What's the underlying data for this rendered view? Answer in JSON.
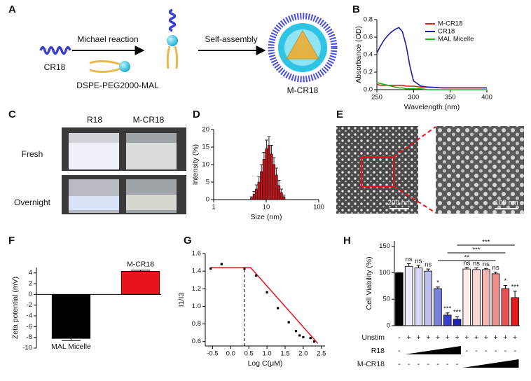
{
  "figure": {
    "panel_labels": [
      "A",
      "B",
      "C",
      "D",
      "E",
      "F",
      "G",
      "H"
    ],
    "scheme": {
      "cr18": "CR18",
      "reaction": "Michael reaction",
      "lipid": "DSPE-PEG2000-MAL",
      "assembly": "Self-assembly",
      "product": "M-CR18"
    },
    "photos": {
      "columns": [
        "R18",
        "M-CR18"
      ],
      "rows": [
        "Fresh",
        "Overnight"
      ]
    },
    "tem": {
      "scale_bars": [
        "200 nm",
        "100 nm"
      ]
    }
  },
  "chart_data": [
    {
      "type": "line",
      "xlabel": "Wavelength (nm)",
      "ylabel": "Absorbance (OD)",
      "x": [
        250,
        255,
        260,
        265,
        270,
        275,
        280,
        285,
        290,
        295,
        300,
        310,
        320,
        340,
        360,
        380,
        400
      ],
      "series": [
        {
          "name": "M-CR18",
          "color": "#e01c1c",
          "values": [
            0.06,
            0.05,
            0.05,
            0.05,
            0.05,
            0.05,
            0.05,
            0.05,
            0.04,
            0.04,
            0.04,
            0.03,
            0.03,
            0.02,
            0.02,
            0.02,
            0.02
          ]
        },
        {
          "name": "CR18",
          "color": "#1c1ca8",
          "values": [
            0.42,
            0.5,
            0.57,
            0.62,
            0.66,
            0.69,
            0.71,
            0.66,
            0.5,
            0.27,
            0.1,
            0.04,
            0.03,
            0.02,
            0.02,
            0.02,
            0.02
          ]
        },
        {
          "name": "MAL Micelle",
          "color": "#20b020",
          "values": [
            0.08,
            0.07,
            0.06,
            0.05,
            0.04,
            0.03,
            0.02,
            0.02,
            0.01,
            0.01,
            0.01,
            0.01,
            0,
            0,
            0,
            0,
            0
          ]
        }
      ],
      "xlim": [
        250,
        400
      ],
      "xticks": [
        250,
        300,
        350,
        400
      ],
      "ylim": [
        0,
        0.8
      ],
      "yticks": [
        {
          "value": 0,
          "label": "0.0"
        },
        0.2,
        0.4,
        0.6,
        0.8
      ],
      "legend": "upper right"
    },
    {
      "type": "histogram",
      "xlabel": "Size (nm)",
      "ylabel": "Intensity (%)",
      "bins": [
        5.0,
        5.6,
        6.2,
        6.9,
        7.7,
        8.6,
        9.6,
        10.7,
        11.9,
        13.3,
        14.8,
        16.5,
        18.4,
        20.5,
        22.9
      ],
      "values": [
        0.5,
        1.5,
        3,
        5,
        8,
        11.5,
        14.5,
        15.5,
        13,
        10,
        7,
        4,
        2,
        0.8
      ],
      "errors": [
        0.3,
        0.8,
        1.2,
        1.5,
        2,
        2,
        2.5,
        2.5,
        2.5,
        2,
        2,
        1.5,
        1,
        0.5
      ],
      "color": "#c0141c",
      "xscale": "log",
      "xlim": [
        1,
        100
      ],
      "xticks": [
        1,
        10,
        100
      ],
      "ylim": [
        0,
        20
      ],
      "yticks": [
        0,
        5,
        10,
        15,
        20
      ]
    },
    {
      "type": "bar",
      "ylabel": "Zeta potential (mV)",
      "categories": [
        "MAL Micelle",
        "M-CR18"
      ],
      "values": [
        -8.2,
        4.3
      ],
      "errors": [
        0.4,
        0.2
      ],
      "colors": [
        "#000000",
        "#e8141c"
      ],
      "ylim": [
        -10,
        5
      ],
      "yticks": [
        -10,
        -8,
        -6,
        -4,
        -2,
        0,
        2,
        4
      ]
    },
    {
      "type": "scatter",
      "xlabel": "Log C(μM)",
      "ylabel": "I1/I3",
      "x": [
        -0.55,
        -0.25,
        0.38,
        0.7,
        1.0,
        1.3,
        1.6,
        1.8,
        1.9,
        2.0,
        2.2,
        2.3
      ],
      "values": [
        1.43,
        1.48,
        1.43,
        1.35,
        1.16,
        0.98,
        0.82,
        0.72,
        0.67,
        0.65,
        0.64,
        0.6
      ],
      "color": "#000000",
      "fit": {
        "x": [
          -0.55,
          0.55,
          2.4
        ],
        "y": [
          1.44,
          1.44,
          0.58
        ],
        "color": "#e8141c"
      },
      "cmc": {
        "x": 0.38,
        "y": 1.44
      },
      "xlim": [
        -0.7,
        2.6
      ],
      "xticks": [
        -0.5,
        {
          "value": 0,
          "label": "0.0"
        },
        0.5,
        {
          "value": 1,
          "label": "1.0"
        },
        1.5,
        {
          "value": 2,
          "label": "2.0"
        },
        2.5
      ],
      "ylim": [
        0.55,
        1.6
      ],
      "yticks": [
        0.6,
        0.8,
        {
          "value": 1,
          "label": "1.0"
        },
        1.2,
        1.4,
        1.6
      ]
    },
    {
      "type": "bar",
      "ylabel": "Cell Viability (%)",
      "values": [
        100,
        112,
        109,
        103,
        70,
        20,
        12,
        107,
        106,
        106,
        98,
        70,
        53
      ],
      "errors": [
        0,
        5,
        5,
        4,
        3,
        4,
        5,
        3,
        3,
        2,
        3,
        6,
        12
      ],
      "colors": [
        "#000000",
        "#ececfa",
        "#d6d7f4",
        "#bcbeee",
        "#7a7fdc",
        "#3a3fd0",
        "#1f22b8",
        "#fcecec",
        "#f8d6d6",
        "#f2b4b4",
        "#ec8e8e",
        "#e65252",
        "#e01c1c"
      ],
      "value_annotations": [
        null,
        "ns",
        "ns",
        "ns",
        "*",
        "***",
        "***",
        "ns",
        "ns",
        "ns",
        "ns",
        "*",
        "***"
      ],
      "comparisons": [
        {
          "bars": [
            6,
            12
          ],
          "label": "***"
        },
        {
          "bars": [
            5,
            11
          ],
          "label": "***"
        },
        {
          "bars": [
            4,
            10
          ],
          "label": "**"
        }
      ],
      "conditions": [
        {
          "label": "Unstim",
          "signs": [
            "-",
            "+",
            "+",
            "+",
            "+",
            "+",
            "+",
            "+",
            "+",
            "+",
            "+",
            "+",
            "+"
          ]
        },
        {
          "label": "R18",
          "signs": [
            "-",
            null,
            null,
            null,
            null,
            null,
            null,
            "-",
            "-",
            "-",
            "-",
            "-",
            "-"
          ]
        },
        {
          "label": "M-CR18",
          "signs": [
            "-",
            "-",
            "-",
            "-",
            "-",
            "-",
            "-",
            null,
            null,
            null,
            null,
            null,
            null
          ]
        }
      ],
      "ylim": [
        0,
        160
      ],
      "yticks": [
        0,
        50,
        100,
        150
      ]
    }
  ]
}
